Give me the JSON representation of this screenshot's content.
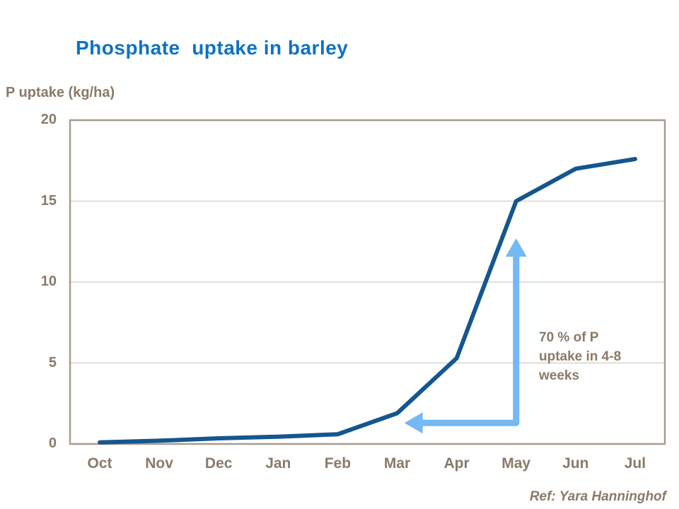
{
  "title": "Phosphate  uptake in barley",
  "y_axis_label": "P uptake (kg/ha)",
  "reference": "Ref: Yara Hanninghof",
  "annotation": {
    "lines": [
      "70 % of P",
      "uptake in 4-8",
      "weeks"
    ]
  },
  "colors": {
    "title": "#0e72c5",
    "text_brown": "#8a7a68",
    "line": "#15568f",
    "arrow": "#74b8f4",
    "frame": "#a79d8f",
    "gridline": "#d9d3cb",
    "background": "#ffffff"
  },
  "chart_data": {
    "type": "line",
    "title": "Phosphate uptake in barley",
    "xlabel": "",
    "ylabel": "P uptake (kg/ha)",
    "categories": [
      "Oct",
      "Nov",
      "Dec",
      "Jan",
      "Feb",
      "Mar",
      "Apr",
      "May",
      "Jun",
      "Jul"
    ],
    "values": [
      0.1,
      0.2,
      0.35,
      0.45,
      0.6,
      1.9,
      5.3,
      15.0,
      17.0,
      17.6
    ],
    "ylim": [
      0,
      20
    ],
    "yticks": [
      0,
      5,
      10,
      15,
      20
    ],
    "grid": true,
    "legend_position": "none",
    "annotation": {
      "text": "70 % of P uptake in 4-8 weeks",
      "arrow": {
        "horizontal_tip": {
          "x_index": 5.12,
          "value": 1.3
        },
        "corner": {
          "x_index": 7,
          "value": 1.3
        },
        "vertical_tip": {
          "x_index": 7,
          "value": 12.7
        }
      }
    }
  }
}
